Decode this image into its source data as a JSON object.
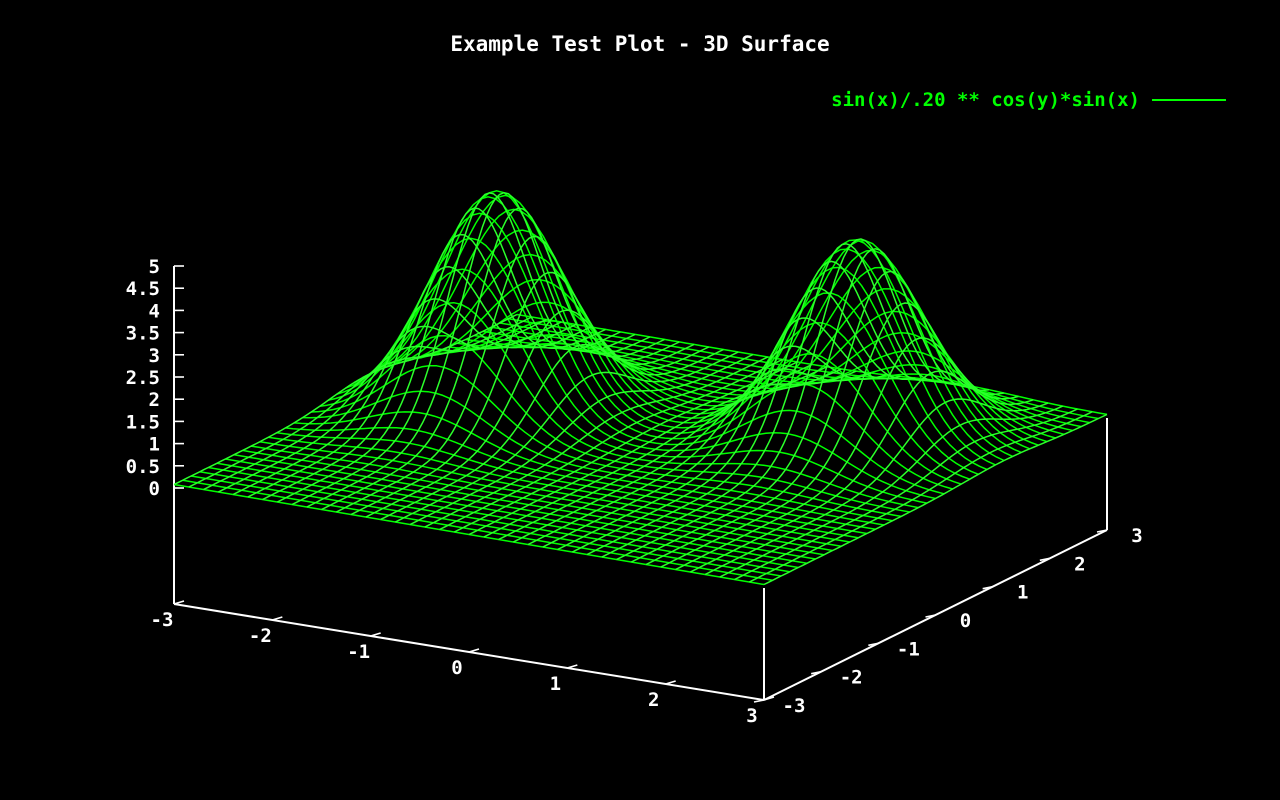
{
  "chart_data": {
    "type": "surface3d",
    "title": "Example Test Plot - 3D Surface",
    "legend": {
      "label": "sin(x)/.20 ** cos(y)*sin(x)",
      "position": "top-right"
    },
    "x_range": [
      -3,
      3
    ],
    "y_range": [
      -3,
      3
    ],
    "z_range": [
      0,
      5
    ],
    "x_ticks": [
      "-3",
      "-2",
      "-1",
      "0",
      "1",
      "2",
      "3"
    ],
    "y_ticks": [
      "-3",
      "-2",
      "-1",
      "0",
      "1",
      "2",
      "3"
    ],
    "z_ticks": [
      "0",
      "0.5",
      "1",
      "1.5",
      "2",
      "2.5",
      "3",
      "3.5",
      "4",
      "4.5",
      "5"
    ],
    "peaks": [
      {
        "x": -1.7,
        "y": 0.4,
        "z": 5.0
      },
      {
        "x": 1.5,
        "y": 1.2,
        "z": 4.6
      }
    ],
    "grid": false,
    "mesh_samples": 40,
    "colors": {
      "background": "#000000",
      "surface": "#00ff00",
      "surface_alt": "#2bff2b",
      "axes": "#ffffff",
      "title": "#ffffff",
      "legend": "#00ff00"
    }
  }
}
